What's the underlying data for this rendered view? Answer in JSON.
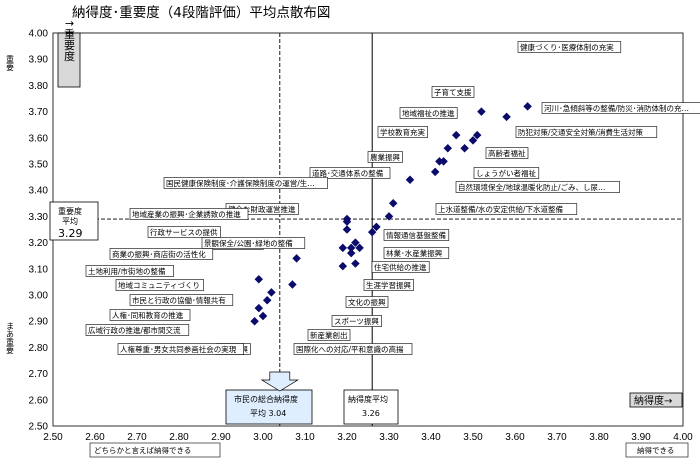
{
  "chart_data": {
    "type": "scatter",
    "title": "納得度･重要度（4段階評価）平均点散布図",
    "xlabel": "納得度→",
    "ylabel": "↑重要度",
    "xlim": [
      2.5,
      4.0
    ],
    "ylim": [
      2.5,
      4.0
    ],
    "xticks": [
      "2.50",
      "2.60",
      "2.70",
      "2.80",
      "2.90",
      "3.00",
      "3.10",
      "3.20",
      "3.30",
      "3.40",
      "3.50",
      "3.60",
      "3.70",
      "3.80",
      "3.90",
      "4.00"
    ],
    "yticks": [
      "2.50",
      "2.60",
      "2.70",
      "2.80",
      "2.90",
      "3.00",
      "3.10",
      "3.20",
      "3.30",
      "3.40",
      "3.50",
      "3.60",
      "3.70",
      "3.80",
      "3.90",
      "4.00"
    ],
    "x_left_note": "どちらかと言えば納得できる",
    "x_right_note": "納得できる",
    "y_top_note": "重要",
    "y_bottom_note": "まあ重要",
    "grid": true,
    "ref_x_avg": {
      "label_line1": "市民の総合納得度",
      "label_line2": "平均 3.04",
      "value": 3.04
    },
    "ref_x_avg2": {
      "label_line1": "納得度平均",
      "label_line2": "3.26",
      "value": 3.26
    },
    "ref_y_avg": {
      "label_line1": "重要度",
      "label_line2": "平均",
      "label_line3": "3.29",
      "value": 3.29
    },
    "points": [
      {
        "label": "健康づくり･医療体制の充実",
        "x": 3.63,
        "y": 3.72
      },
      {
        "label": "子育て支援",
        "x": 3.52,
        "y": 3.7
      },
      {
        "label": "河川･急傾斜等の整備/防災･消防体制の充実",
        "x": 3.58,
        "y": 3.68
      },
      {
        "label": "防犯対策/交通安全対策/消費生活対策",
        "x": 3.51,
        "y": 3.61
      },
      {
        "label": "地域福祉の推進",
        "x": 3.46,
        "y": 3.61
      },
      {
        "label": "学校教育充実",
        "x": 3.44,
        "y": 3.56
      },
      {
        "label": "高齢者福祉",
        "x": 3.5,
        "y": 3.59
      },
      {
        "label": "しょうがい者福祉",
        "x": 3.48,
        "y": 3.56
      },
      {
        "label": "農業振興",
        "x": 3.43,
        "y": 3.51
      },
      {
        "label": "自然環境保全/地球温暖化防止/ごみ、し尿処理/公害防止対策",
        "x": 3.42,
        "y": 3.51
      },
      {
        "label": "上水道整備/水の安定供給/下水道整備",
        "x": 3.41,
        "y": 3.47
      },
      {
        "label": "道路･交通体系の整備",
        "x": 3.35,
        "y": 3.44
      },
      {
        "label": "国民健康保険制度･介護保険制度の運営/生活困窮者支援",
        "x": 3.31,
        "y": 3.35
      },
      {
        "label": "健全な財政運営推進",
        "x": 3.2,
        "y": 3.29
      },
      {
        "label": "地域産業の振興･企業誘致の推進",
        "x": 3.2,
        "y": 3.28
      },
      {
        "label": "情報通信基盤整備",
        "x": 3.3,
        "y": 3.3
      },
      {
        "label": "行政サービスの提供",
        "x": 3.2,
        "y": 3.25
      },
      {
        "label": "林業･水産業振興",
        "x": 3.27,
        "y": 3.26
      },
      {
        "label": "公園緑地の整備",
        "x": 3.26,
        "y": 3.24
      },
      {
        "label": "景観保全/公園･緑地の整備",
        "x": 3.22,
        "y": 3.2
      },
      {
        "label": "住宅供給の推進",
        "x": 3.23,
        "y": 3.18
      },
      {
        "label": "商業の振興･商店街の活性化",
        "x": 3.21,
        "y": 3.18
      },
      {
        "label": "土地利用/市街地の整備",
        "x": 3.08,
        "y": 3.14
      },
      {
        "label": "生涯学習振興",
        "x": 3.21,
        "y": 3.16
      },
      {
        "label": "地域コミュニティづくり",
        "x": 2.99,
        "y": 3.06
      },
      {
        "label": "文化の振興",
        "x": 3.19,
        "y": 3.11
      },
      {
        "label": "市民と行政の協働･情報共有",
        "x": 3.02,
        "y": 3.01
      },
      {
        "label": "人権･同和教育の推進",
        "x": 3.01,
        "y": 2.98
      },
      {
        "label": "スポーツ振興",
        "x": 3.07,
        "y": 3.04
      },
      {
        "label": "広域行政の推進/都市間交流",
        "x": 2.99,
        "y": 2.95
      },
      {
        "label": "観光振興",
        "x": 3.0,
        "y": 2.92
      },
      {
        "label": "人権尊重･男女共同参画社会の実現",
        "x": 2.98,
        "y": 2.9
      },
      {
        "label": "国際化への対応/平和意識の高揚",
        "x": 3.19,
        "y": 3.18
      },
      {
        "label": "新産業創出",
        "x": 3.22,
        "y": 3.12
      }
    ]
  }
}
